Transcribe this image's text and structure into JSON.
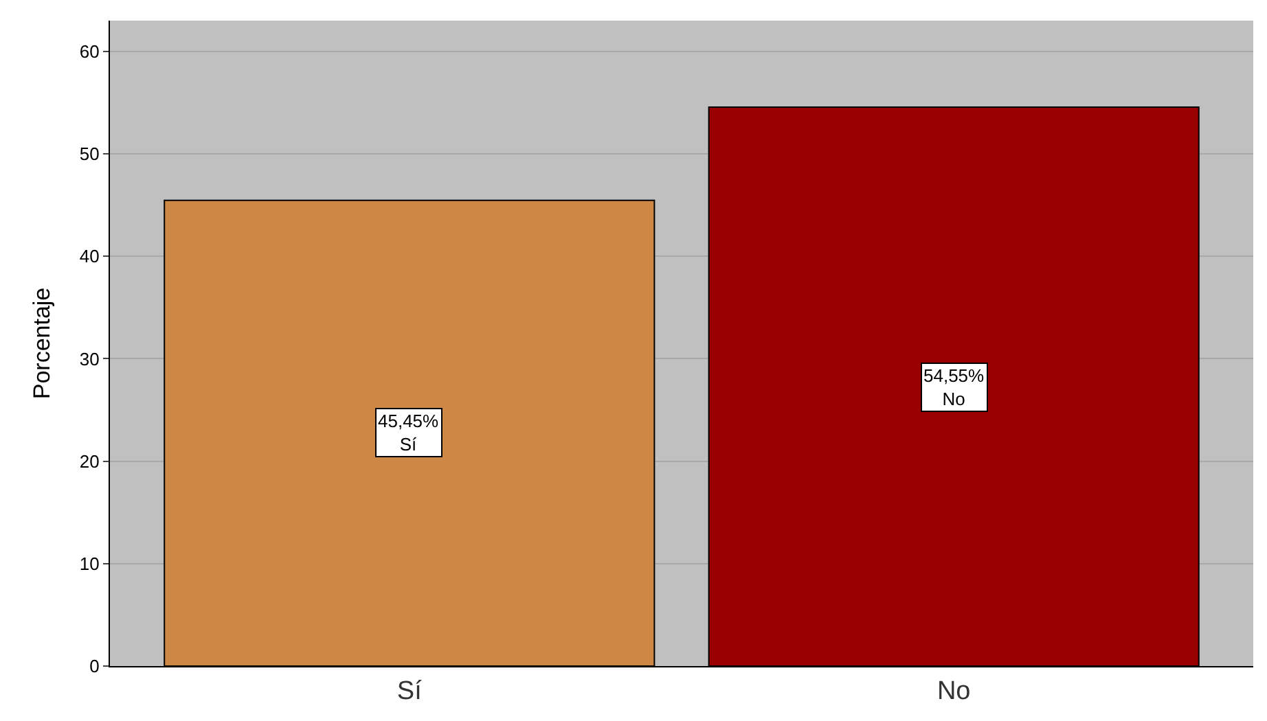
{
  "chart_data": {
    "type": "bar",
    "ylabel": "Porcentaje",
    "categories": [
      "Sí",
      "No"
    ],
    "values": [
      45.45,
      54.55
    ],
    "colors": [
      "#cc8844",
      "#990000"
    ],
    "value_labels": [
      "45,45%\nSí",
      "54,55%\nNo"
    ],
    "ylim": [
      0,
      63
    ],
    "yticks": [
      0,
      10,
      20,
      30,
      40,
      50,
      60
    ],
    "grid": "y",
    "legend": false
  }
}
